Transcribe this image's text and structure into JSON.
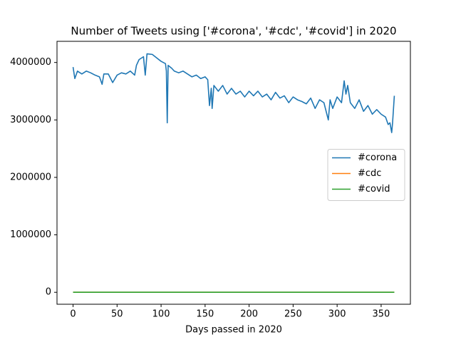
{
  "chart_data": {
    "type": "line",
    "title": "Number of Tweets using ['#corona', '#cdc', '#covid'] in 2020",
    "xlabel": "Days passed in 2020",
    "x": [
      0,
      2,
      5,
      10,
      15,
      20,
      25,
      30,
      33,
      35,
      40,
      45,
      50,
      55,
      60,
      65,
      70,
      72,
      75,
      80,
      82,
      84,
      90,
      95,
      100,
      105,
      106,
      107,
      108,
      112,
      115,
      120,
      125,
      130,
      135,
      140,
      145,
      150,
      153,
      155,
      157,
      158,
      160,
      165,
      170,
      175,
      180,
      185,
      190,
      195,
      200,
      205,
      210,
      215,
      220,
      225,
      230,
      235,
      240,
      245,
      250,
      255,
      260,
      265,
      270,
      275,
      280,
      285,
      290,
      292,
      295,
      300,
      305,
      308,
      310,
      312,
      315,
      320,
      325,
      330,
      335,
      340,
      345,
      350,
      355,
      358,
      360,
      362,
      363,
      365
    ],
    "series": [
      {
        "name": "#corona",
        "color": "#1f77b4",
        "values": [
          3920000,
          3720000,
          3850000,
          3800000,
          3850000,
          3820000,
          3780000,
          3750000,
          3620000,
          3800000,
          3800000,
          3650000,
          3780000,
          3820000,
          3800000,
          3850000,
          3780000,
          3950000,
          4050000,
          4100000,
          3780000,
          4150000,
          4140000,
          4080000,
          4020000,
          3980000,
          3850000,
          2950000,
          3950000,
          3900000,
          3850000,
          3820000,
          3850000,
          3800000,
          3750000,
          3780000,
          3720000,
          3750000,
          3700000,
          3250000,
          3550000,
          3200000,
          3600000,
          3500000,
          3600000,
          3450000,
          3550000,
          3450000,
          3500000,
          3400000,
          3500000,
          3420000,
          3500000,
          3400000,
          3450000,
          3350000,
          3480000,
          3380000,
          3420000,
          3300000,
          3400000,
          3350000,
          3320000,
          3280000,
          3380000,
          3200000,
          3350000,
          3300000,
          3000000,
          3350000,
          3200000,
          3400000,
          3300000,
          3680000,
          3450000,
          3600000,
          3300000,
          3200000,
          3350000,
          3150000,
          3250000,
          3100000,
          3180000,
          3100000,
          3050000,
          2920000,
          2950000,
          2780000,
          2950000,
          3420000
        ]
      },
      {
        "name": "#cdc",
        "color": "#ff7f0e",
        "values": [
          0,
          0,
          0,
          0,
          0,
          0,
          0,
          0,
          0,
          0,
          0,
          0,
          0,
          0,
          0,
          0,
          0,
          0,
          0,
          0,
          0,
          0,
          0,
          0,
          0,
          0,
          0,
          0,
          0,
          0,
          0,
          0,
          0,
          0,
          0,
          0,
          0,
          0,
          0,
          0,
          0,
          0,
          0,
          0,
          0,
          0,
          0,
          0,
          0,
          0,
          0,
          0,
          0,
          0,
          0,
          0,
          0,
          0,
          0,
          0,
          0,
          0,
          0,
          0,
          0,
          0,
          0,
          0,
          0,
          0,
          0,
          0,
          0,
          0,
          0,
          0,
          0,
          0,
          0,
          0,
          0,
          0,
          0,
          0,
          0,
          0,
          0,
          0,
          0,
          0
        ]
      },
      {
        "name": "#covid",
        "color": "#2ca02c",
        "values": [
          0,
          0,
          0,
          0,
          0,
          0,
          0,
          0,
          0,
          0,
          0,
          0,
          0,
          0,
          0,
          0,
          0,
          0,
          0,
          0,
          0,
          0,
          0,
          0,
          0,
          0,
          0,
          0,
          0,
          0,
          0,
          0,
          0,
          0,
          0,
          0,
          0,
          0,
          0,
          0,
          0,
          0,
          0,
          0,
          0,
          0,
          0,
          0,
          0,
          0,
          0,
          0,
          0,
          0,
          0,
          0,
          0,
          0,
          0,
          0,
          0,
          0,
          0,
          0,
          0,
          0,
          0,
          0,
          0,
          0,
          0,
          0,
          0,
          0,
          0,
          0,
          0,
          0,
          0,
          0,
          0,
          0,
          0,
          0,
          0,
          0,
          0,
          0,
          0,
          0
        ]
      }
    ],
    "xlim": [
      -18.25,
      383.25
    ],
    "xticks": [
      0,
      50,
      100,
      150,
      200,
      250,
      300,
      350
    ],
    "ylim": [
      -208000,
      4368000
    ],
    "yticks": [
      0,
      1000000,
      2000000,
      3000000,
      4000000
    ],
    "grid": false,
    "legend": "center right"
  }
}
